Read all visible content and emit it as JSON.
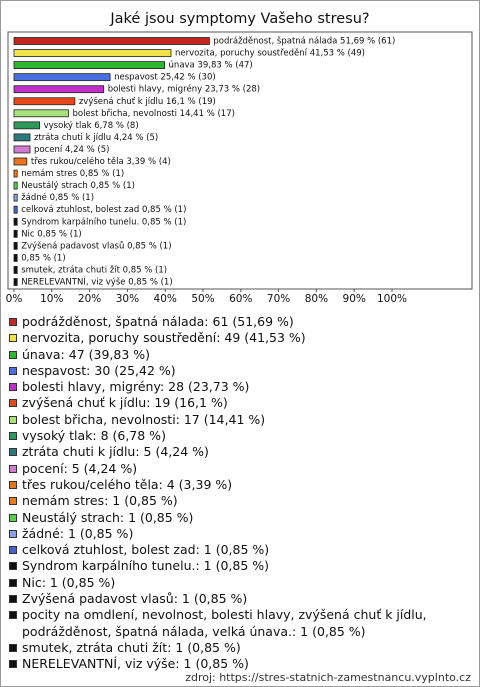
{
  "chart_data": {
    "type": "bar",
    "orientation": "horizontal",
    "title": "Jaké jsou symptomy Vašeho stresu?",
    "values": [
      51.69,
      41.53,
      39.83,
      25.42,
      23.73,
      16.1,
      14.41,
      6.78,
      4.24,
      4.24,
      3.39,
      0.85,
      0.85,
      0.85,
      0.85,
      0.85,
      0.85,
      0.85,
      0.85,
      0.85,
      0.85
    ],
    "value_labels": [
      "podrážděnost, špatná nálada 51,69 % (61)",
      "nervozita, poruchy soustředění 41,53 % (49)",
      "únava 39,83 % (47)",
      "nespavost 25,42 % (30)",
      "bolesti hlavy, migrény 23,73 % (28)",
      "zvýšená chuť k jídlu 16,1 % (19)",
      "bolest břicha, nevolnosti 14,41 % (17)",
      "vysoký tlak 6,78 % (8)",
      "ztráta chuti k jídlu 4,24 % (5)",
      "pocení 4,24 % (5)",
      "třes rukou/celého těla 3,39 % (4)",
      "nemám stres 0,85 % (1)",
      "Neustálý strach 0,85 % (1)",
      "žádné 0,85 % (1)",
      "celková ztuhlost, bolest zad 0,85 % (1)",
      "Syndrom karpálního tunelu. 0,85 % (1)",
      "Nic 0,85 % (1)",
      "Zvýšená padavost vlasů 0,85 % (1)",
      "0,85 % (1)",
      "smutek, ztráta chuti žít 0,85 % (1)",
      "NERELEVANTNÍ, viz výše 0,85 % (1)"
    ],
    "colors": [
      "#c0281c",
      "#f2e24a",
      "#2fb52f",
      "#4a6fe0",
      "#c030c8",
      "#e8481c",
      "#a8e27a",
      "#2e9a5a",
      "#2a7a80",
      "#d07ad0",
      "#e8741e",
      "#f07a1a",
      "#5ad04a",
      "#8aa0e8",
      "#4a62c8",
      "#111111",
      "#111111",
      "#111111",
      "#111111",
      "#111111",
      "#111111"
    ],
    "legend": [
      "podrážděnost, špatná nálada: 61 (51,69 %)",
      "nervozita, poruchy soustředění: 49 (41,53 %)",
      "únava: 47 (39,83 %)",
      "nespavost: 30 (25,42 %)",
      "bolesti hlavy, migrény: 28 (23,73 %)",
      "zvýšená chuť k jídlu: 19 (16,1 %)",
      "bolest břicha, nevolnosti: 17 (14,41 %)",
      "vysoký tlak: 8 (6,78 %)",
      "ztráta chuti k jídlu: 5 (4,24 %)",
      "pocení: 5 (4,24 %)",
      "třes rukou/celého těla: 4 (3,39 %)",
      "nemám stres: 1 (0,85 %)",
      "Neustálý strach: 1 (0,85 %)",
      "žádné: 1 (0,85 %)",
      "celková ztuhlost, bolest zad: 1 (0,85 %)",
      "Syndrom karpálního tunelu.: 1 (0,85 %)",
      "Nic: 1 (0,85 %)",
      "Zvýšená padavost vlasů: 1 (0,85 %)",
      "pocity na omdlení, nevolnost, bolesti hlavy, zvýšená chuť k jídlu, podrážděnost, špatná nálada, velká únava.: 1 (0,85 %)",
      "smutek, ztráta chuti žít: 1 (0,85 %)",
      "NERELEVANTNÍ, viz výše: 1 (0,85 %)"
    ],
    "xlim": [
      0,
      100
    ],
    "xticks": [
      {
        "value": 0,
        "label": "0%"
      },
      {
        "value": 10,
        "label": "10%"
      },
      {
        "value": 20,
        "label": "20%"
      },
      {
        "value": 30,
        "label": "30%"
      },
      {
        "value": 40,
        "label": "40%"
      },
      {
        "value": 50,
        "label": "50%"
      },
      {
        "value": 60,
        "label": "60%"
      },
      {
        "value": 70,
        "label": "70%"
      },
      {
        "value": 80,
        "label": "80%"
      },
      {
        "value": 90,
        "label": "90%"
      },
      {
        "value": 100,
        "label": "100%"
      }
    ],
    "source": "zdroj: https://stres-statnich-zamestnancu.vyplnto.cz"
  }
}
